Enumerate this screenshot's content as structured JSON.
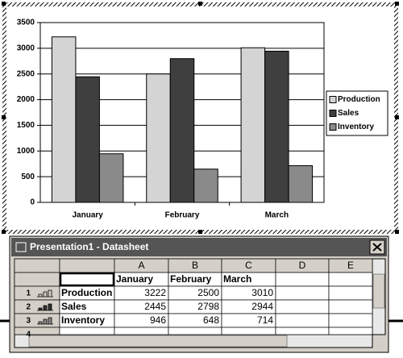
{
  "chart_data": {
    "type": "bar",
    "categories": [
      "January",
      "February",
      "March"
    ],
    "series": [
      {
        "name": "Production",
        "color": "#d4d4d4",
        "values": [
          3222,
          2500,
          3010
        ]
      },
      {
        "name": "Sales",
        "color": "#3f3f3f",
        "values": [
          2445,
          2798,
          2944
        ]
      },
      {
        "name": "Inventory",
        "color": "#8a8a8a",
        "values": [
          946,
          648,
          714
        ]
      }
    ],
    "ylim": [
      0,
      3500
    ],
    "yticks": [
      0,
      500,
      1000,
      1500,
      2000,
      2500,
      3000,
      3500
    ],
    "grid": true,
    "legend": "right"
  },
  "datasheet": {
    "title": "Presentation1 - Datasheet",
    "columns": [
      "A",
      "B",
      "C",
      "D",
      "E"
    ],
    "rows": [
      "1",
      "2",
      "3",
      "4"
    ]
  }
}
